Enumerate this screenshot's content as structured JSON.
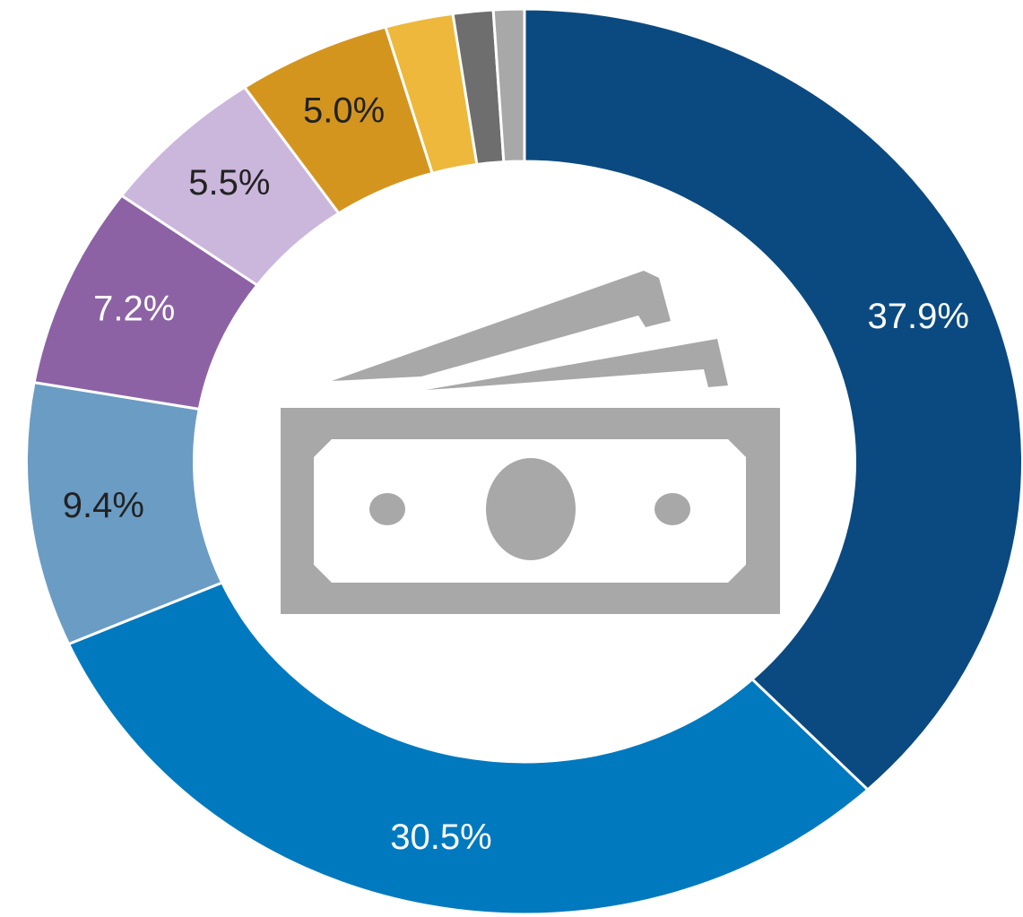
{
  "chart_data": {
    "type": "donut",
    "values": [
      37.9,
      30.5,
      9.4,
      7.2,
      5.5,
      5.0,
      2.2,
      1.3,
      1.0
    ],
    "value_labels": [
      "37.9%",
      "30.5%",
      "9.4%",
      "7.2%",
      "5.5%",
      "5.0%",
      null,
      null,
      null
    ],
    "colors": [
      "#0b4a80",
      "#0079bf",
      "#6b9cc4",
      "#8c62a5",
      "#cbb6dc",
      "#d4951f",
      "#edb83b",
      "#6e6e6e",
      "#a8a8a8"
    ]
  }
}
